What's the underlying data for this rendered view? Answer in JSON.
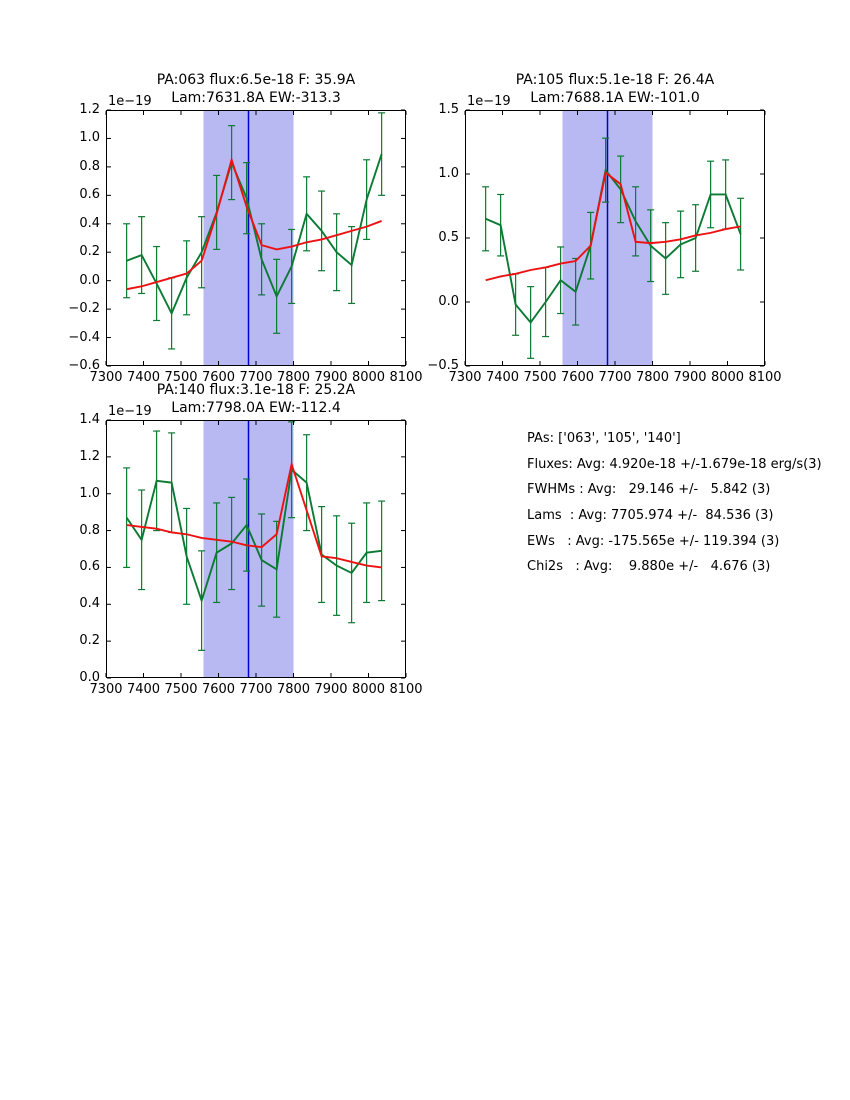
{
  "figure": {
    "background": "#ffffff"
  },
  "stats_panel": {
    "lines": [
      "PAs: ['063', '105', '140']",
      "Fluxes: Avg: 4.920e-18 +/-1.679e-18 erg/s(3)",
      "FWHMs : Avg:   29.146 +/-   5.842 (3)",
      "Lams  : Avg: 7705.974 +/-  84.536 (3)",
      "EWs   : Avg: -175.565e +/- 119.394 (3)",
      "Chi2s   : Avg:    9.880e +/-   4.676 (3)"
    ]
  },
  "chart_data": [
    {
      "id": "pa063",
      "type": "line",
      "title_line1": "PA:063 flux:6.5e-18 F: 35.9A",
      "title_line2": "Lam:7631.8A EW:-313.3",
      "y_offset_label": "1e−19",
      "xlim": [
        7300,
        8100
      ],
      "ylim": [
        -0.6,
        1.2
      ],
      "xticks": [
        7300,
        7400,
        7500,
        7600,
        7700,
        7800,
        7900,
        8000,
        8100
      ],
      "xtick_labels": [
        "7300",
        "7400",
        "7500",
        "7600",
        "7700",
        "7800",
        "7900",
        "8000",
        "8100"
      ],
      "yticks": [
        1.2,
        1.0,
        0.8,
        0.6,
        0.4,
        0.2,
        0.0,
        -0.2,
        -0.4,
        -0.6
      ],
      "ytick_labels": [
        "1.2",
        "1.0",
        "0.8",
        "0.6",
        "0.4",
        "0.2",
        "0.0",
        "−0.2",
        "−0.4",
        "−0.6"
      ],
      "grid": false,
      "legend": null,
      "shaded_region": {
        "x0": 7560,
        "x1": 7800,
        "color": "#b8b8f2"
      },
      "vline": {
        "x": 7680,
        "color": "#0000cc"
      },
      "x": [
        7355,
        7395,
        7435,
        7475,
        7515,
        7555,
        7595,
        7635,
        7675,
        7715,
        7755,
        7795,
        7835,
        7875,
        7915,
        7955,
        7995,
        8035
      ],
      "series": [
        {
          "name": "spectrum",
          "style": "errorbar-line",
          "color": "#0b7a33",
          "values": [
            0.14,
            0.18,
            -0.02,
            -0.23,
            0.02,
            0.2,
            0.48,
            0.83,
            0.58,
            0.15,
            -0.11,
            0.1,
            0.47,
            0.35,
            0.2,
            0.11,
            0.57,
            0.89
          ],
          "errors": [
            0.26,
            0.27,
            0.26,
            0.25,
            0.26,
            0.25,
            0.26,
            0.26,
            0.25,
            0.25,
            0.26,
            0.26,
            0.26,
            0.28,
            0.27,
            0.27,
            0.28,
            0.29
          ]
        },
        {
          "name": "gaussian-fit",
          "style": "line",
          "color": "#ee1111",
          "values": [
            -0.06,
            -0.04,
            -0.01,
            0.02,
            0.05,
            0.14,
            0.47,
            0.85,
            0.52,
            0.25,
            0.22,
            0.24,
            0.27,
            0.29,
            0.32,
            0.35,
            0.38,
            0.42
          ]
        }
      ]
    },
    {
      "id": "pa105",
      "type": "line",
      "title_line1": "PA:105 flux:5.1e-18 F: 26.4A",
      "title_line2": "Lam:7688.1A EW:-101.0",
      "y_offset_label": "1e−19",
      "xlim": [
        7300,
        8100
      ],
      "ylim": [
        -0.5,
        1.5
      ],
      "xticks": [
        7300,
        7400,
        7500,
        7600,
        7700,
        7800,
        7900,
        8000,
        8100
      ],
      "xtick_labels": [
        "7300",
        "7400",
        "7500",
        "7600",
        "7700",
        "7800",
        "7900",
        "8000",
        "8100"
      ],
      "yticks": [
        1.5,
        1.0,
        0.5,
        0.0,
        -0.5
      ],
      "ytick_labels": [
        "1.5",
        "1.0",
        "0.5",
        "0.0",
        "−0.5"
      ],
      "grid": false,
      "legend": null,
      "shaded_region": {
        "x0": 7560,
        "x1": 7800,
        "color": "#b8b8f2"
      },
      "vline": {
        "x": 7680,
        "color": "#0000cc"
      },
      "x": [
        7355,
        7395,
        7435,
        7475,
        7515,
        7555,
        7595,
        7635,
        7675,
        7715,
        7755,
        7795,
        7835,
        7875,
        7915,
        7955,
        7995,
        8035
      ],
      "series": [
        {
          "name": "spectrum",
          "style": "errorbar-line",
          "color": "#0b7a33",
          "values": [
            0.65,
            0.6,
            -0.02,
            -0.16,
            0.0,
            0.17,
            0.08,
            0.44,
            1.03,
            0.88,
            0.63,
            0.44,
            0.34,
            0.45,
            0.5,
            0.84,
            0.84,
            0.53
          ],
          "errors": [
            0.25,
            0.24,
            0.24,
            0.28,
            0.27,
            0.26,
            0.26,
            0.26,
            0.25,
            0.26,
            0.27,
            0.28,
            0.28,
            0.26,
            0.26,
            0.26,
            0.27,
            0.28
          ]
        },
        {
          "name": "gaussian-fit",
          "style": "line",
          "color": "#ee1111",
          "values": [
            0.17,
            0.2,
            0.22,
            0.25,
            0.27,
            0.3,
            0.32,
            0.44,
            1.01,
            0.92,
            0.47,
            0.46,
            0.47,
            0.49,
            0.52,
            0.54,
            0.57,
            0.59
          ]
        }
      ]
    },
    {
      "id": "pa140",
      "type": "line",
      "title_line1": "PA:140 flux:3.1e-18 F: 25.2A",
      "title_line2": "Lam:7798.0A EW:-112.4",
      "y_offset_label": "1e−19",
      "xlim": [
        7300,
        8100
      ],
      "ylim": [
        0.0,
        1.4
      ],
      "xticks": [
        7300,
        7400,
        7500,
        7600,
        7700,
        7800,
        7900,
        8000,
        8100
      ],
      "xtick_labels": [
        "7300",
        "7400",
        "7500",
        "7600",
        "7700",
        "7800",
        "7900",
        "8000",
        "8100"
      ],
      "yticks": [
        1.4,
        1.2,
        1.0,
        0.8,
        0.6,
        0.4,
        0.2,
        0.0
      ],
      "ytick_labels": [
        "1.4",
        "1.2",
        "1.0",
        "0.8",
        "0.6",
        "0.4",
        "0.2",
        "0.0"
      ],
      "grid": false,
      "legend": null,
      "shaded_region": {
        "x0": 7560,
        "x1": 7800,
        "color": "#b8b8f2"
      },
      "vline": {
        "x": 7680,
        "color": "#0000cc"
      },
      "x": [
        7355,
        7395,
        7435,
        7475,
        7515,
        7555,
        7595,
        7635,
        7675,
        7715,
        7755,
        7795,
        7835,
        7875,
        7915,
        7955,
        7995,
        8035
      ],
      "series": [
        {
          "name": "spectrum",
          "style": "errorbar-line",
          "color": "#0b7a33",
          "values": [
            0.87,
            0.75,
            1.07,
            1.06,
            0.66,
            0.42,
            0.68,
            0.73,
            0.83,
            0.64,
            0.59,
            1.13,
            1.06,
            0.67,
            0.61,
            0.57,
            0.68,
            0.69
          ],
          "errors": [
            0.27,
            0.27,
            0.27,
            0.27,
            0.26,
            0.27,
            0.27,
            0.25,
            0.25,
            0.25,
            0.26,
            0.26,
            0.26,
            0.26,
            0.27,
            0.27,
            0.27,
            0.27
          ]
        },
        {
          "name": "gaussian-fit",
          "style": "line",
          "color": "#ee1111",
          "values": [
            0.83,
            0.82,
            0.81,
            0.79,
            0.78,
            0.76,
            0.75,
            0.74,
            0.72,
            0.71,
            0.78,
            1.16,
            0.91,
            0.66,
            0.65,
            0.63,
            0.61,
            0.6
          ]
        }
      ]
    }
  ]
}
